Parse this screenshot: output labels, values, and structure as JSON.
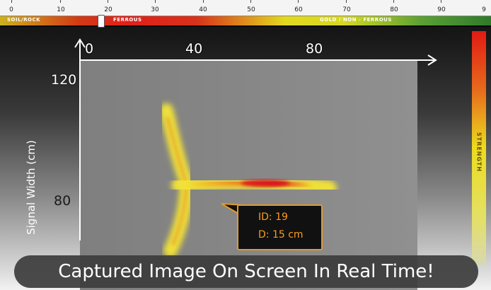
{
  "id_scale": {
    "ticks": [
      "0",
      "10",
      "20",
      "30",
      "40",
      "50",
      "60",
      "70",
      "80",
      "90",
      "9"
    ],
    "zones": {
      "soil_rock": "SOIL/ROCK",
      "ferrous": "FERROUS",
      "gold_non_ferrous": "GOLD / NON - FERROUS"
    },
    "marker_value": 19,
    "colors": [
      "#cdb21c",
      "#e0201a",
      "#e2d91e",
      "#2f7a2c"
    ]
  },
  "plot": {
    "x_ticks": [
      "0",
      "40",
      "80"
    ],
    "y_ticks": [
      "120",
      "80"
    ],
    "y_title": "Signal Width (cm)"
  },
  "strength": {
    "label": "STRENGTH",
    "colors": [
      "#e21a14",
      "#ebdc1e",
      "#d8d8b0"
    ]
  },
  "callout": {
    "id_line": "ID: 19",
    "depth_line": "D: 15 cm",
    "border_color": "#e29a2a",
    "text_color": "#ff9c1a"
  },
  "caption": {
    "text": "Captured Image On Screen In Real Time!"
  }
}
